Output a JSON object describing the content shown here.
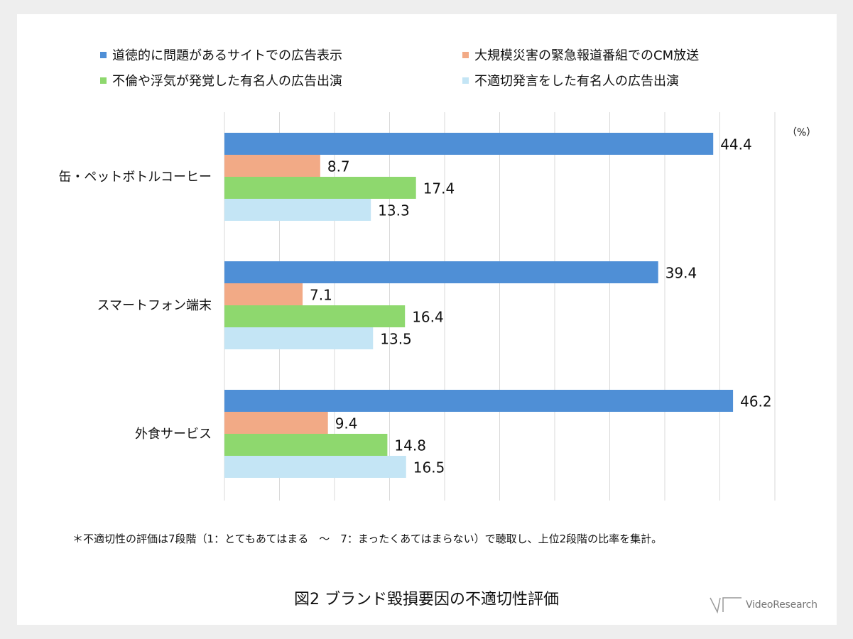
{
  "chart_data": {
    "type": "bar",
    "orientation": "horizontal",
    "unit": "（%）",
    "categories": [
      "缶・ペットボトルコーヒー",
      "スマートフォン端末",
      "外食サービス"
    ],
    "series": [
      {
        "name": "道徳的に問題があるサイトでの広告表示",
        "color": "#4f8fd6",
        "values": [
          44.4,
          39.4,
          46.2
        ]
      },
      {
        "name": "大規模災害の緊急報道番組でのCM放送",
        "color": "#f2aa86",
        "values": [
          8.7,
          7.1,
          9.4
        ]
      },
      {
        "name": "不倫や浮気が発覚した有名人の広告出演",
        "color": "#8ed86e",
        "values": [
          17.4,
          16.4,
          14.8
        ]
      },
      {
        "name": "不適切発言をした有名人の広告出演",
        "color": "#c4e5f5",
        "values": [
          13.3,
          13.5,
          16.5
        ]
      }
    ],
    "xlim": [
      0,
      50
    ],
    "grid": true,
    "legend_position": "top",
    "data_labels": true
  },
  "footnote": "＊不適切性の評価は7段階（1：とてもあてはまる　～　7：まったくあてはまらない）で聴取し、上位2段階の比率を集計。",
  "title": "図2 ブランド毀損要因の不適切性評価",
  "logo": {
    "text": "VideoResearch"
  }
}
